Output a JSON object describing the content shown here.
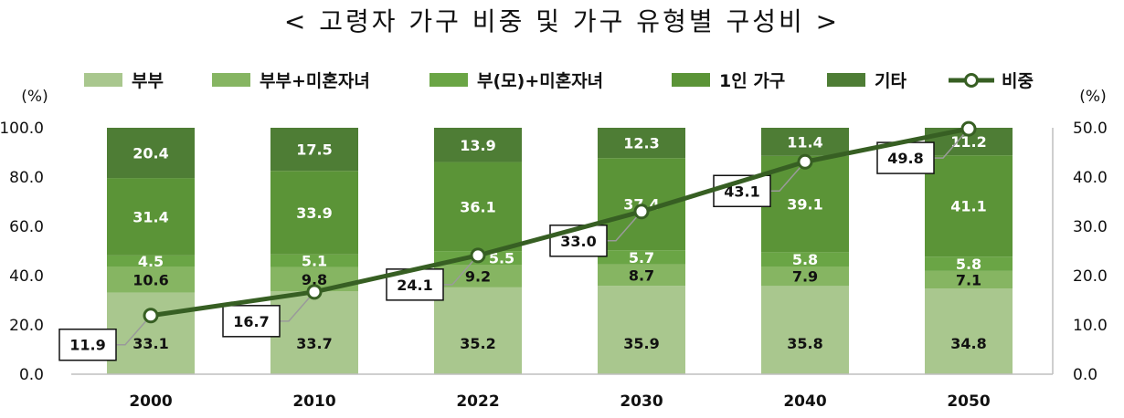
{
  "title": "< 고령자 가구 비중 및 가구 유형별 구성비 >",
  "axes": {
    "left_unit": "(%)",
    "right_unit": "(%)"
  },
  "colors": {
    "couple": "#a9c78e",
    "couple_children": "#86b562",
    "single_parent": "#6aa545",
    "one_person": "#5b9437",
    "other": "#4e7d35",
    "line": "#375f23"
  },
  "chart_data": {
    "type": "bar",
    "stacked": true,
    "title": "< 고령자 가구 비중 및 가구 유형별 구성비 >",
    "categories": [
      "2000",
      "2010",
      "2022",
      "2030",
      "2040",
      "2050"
    ],
    "series": [
      {
        "name": "부부",
        "values": [
          33.1,
          33.7,
          35.2,
          35.9,
          35.8,
          34.8
        ]
      },
      {
        "name": "부부+미혼자녀",
        "values": [
          10.6,
          9.8,
          9.2,
          8.7,
          7.9,
          7.1
        ]
      },
      {
        "name": "부(모)+미혼자녀",
        "values": [
          4.5,
          5.1,
          5.5,
          5.7,
          5.8,
          5.8
        ]
      },
      {
        "name": "1인 가구",
        "values": [
          31.4,
          33.9,
          36.1,
          37.4,
          39.1,
          41.1
        ]
      },
      {
        "name": "기타",
        "values": [
          20.4,
          17.5,
          13.9,
          12.3,
          11.4,
          11.2
        ]
      }
    ],
    "line_series": {
      "name": "비중",
      "axis": "right",
      "values": [
        11.9,
        16.7,
        24.1,
        33.0,
        43.1,
        49.8
      ]
    },
    "ylim": [
      0,
      100
    ],
    "y2lim": [
      0,
      50
    ],
    "yticks": [
      "0.0",
      "20.0",
      "40.0",
      "60.0",
      "80.0",
      "100.0"
    ],
    "y2ticks": [
      "0.0",
      "10.0",
      "20.0",
      "30.0",
      "40.0",
      "50.0"
    ],
    "grid": false,
    "legend_position": "top"
  }
}
